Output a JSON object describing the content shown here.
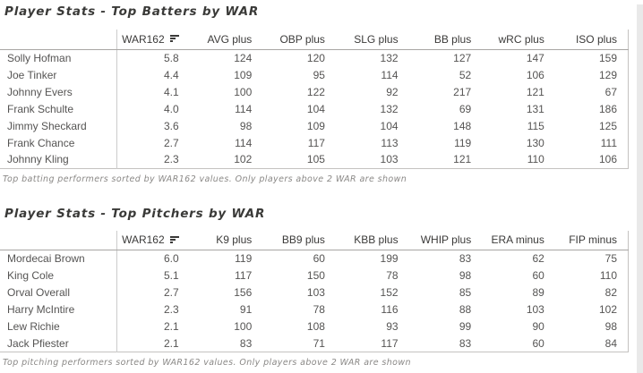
{
  "colors": {
    "background": "#ffffff",
    "canvas_edge": "#e9e9e9",
    "title_text": "#3a3a38",
    "header_text": "#3b3a39",
    "cell_text": "#555453",
    "footnote_text": "#8a8886",
    "divider": "#cccccc",
    "header_border": "#a8a6a4",
    "table_border": "#c4c2c0"
  },
  "batters": {
    "title": "Player Stats - Top Batters by WAR",
    "sort": {
      "column": "WAR162",
      "direction": "descending"
    },
    "columns": [
      "WAR162",
      "AVG plus",
      "OBP plus",
      "SLG plus",
      "BB plus",
      "wRC plus",
      "ISO plus"
    ],
    "rows": [
      {
        "name": "Solly Hofman",
        "values": [
          "5.8",
          "124",
          "120",
          "132",
          "127",
          "147",
          "159"
        ]
      },
      {
        "name": "Joe Tinker",
        "values": [
          "4.4",
          "109",
          "95",
          "114",
          "52",
          "106",
          "129"
        ]
      },
      {
        "name": "Johnny Evers",
        "values": [
          "4.1",
          "100",
          "122",
          "92",
          "217",
          "121",
          "67"
        ]
      },
      {
        "name": "Frank Schulte",
        "values": [
          "4.0",
          "114",
          "104",
          "132",
          "69",
          "131",
          "186"
        ]
      },
      {
        "name": "Jimmy Sheckard",
        "values": [
          "3.6",
          "98",
          "109",
          "104",
          "148",
          "115",
          "125"
        ]
      },
      {
        "name": "Frank Chance",
        "values": [
          "2.7",
          "114",
          "117",
          "113",
          "119",
          "130",
          "111"
        ]
      },
      {
        "name": "Johnny Kling",
        "values": [
          "2.3",
          "102",
          "105",
          "103",
          "121",
          "110",
          "106"
        ]
      }
    ],
    "footnote": "Top batting performers sorted by WAR162 values. Only players above 2 WAR are shown"
  },
  "pitchers": {
    "title": "Player Stats - Top Pitchers by WAR",
    "sort": {
      "column": "WAR162",
      "direction": "descending"
    },
    "columns": [
      "WAR162",
      "K9 plus",
      "BB9 plus",
      "KBB plus",
      "WHIP plus",
      "ERA minus",
      "FIP minus"
    ],
    "rows": [
      {
        "name": "Mordecai Brown",
        "values": [
          "6.0",
          "119",
          "60",
          "199",
          "83",
          "62",
          "75"
        ]
      },
      {
        "name": "King Cole",
        "values": [
          "5.1",
          "117",
          "150",
          "78",
          "98",
          "60",
          "110"
        ]
      },
      {
        "name": "Orval Overall",
        "values": [
          "2.7",
          "156",
          "103",
          "152",
          "85",
          "89",
          "82"
        ]
      },
      {
        "name": "Harry McIntire",
        "values": [
          "2.3",
          "91",
          "78",
          "116",
          "88",
          "103",
          "102"
        ]
      },
      {
        "name": "Lew Richie",
        "values": [
          "2.1",
          "100",
          "108",
          "93",
          "99",
          "90",
          "98"
        ]
      },
      {
        "name": "Jack Pfiester",
        "values": [
          "2.1",
          "83",
          "71",
          "117",
          "83",
          "60",
          "84"
        ]
      }
    ],
    "footnote": "Top pitching performers sorted by WAR162 values. Only players above 2 WAR are shown"
  }
}
